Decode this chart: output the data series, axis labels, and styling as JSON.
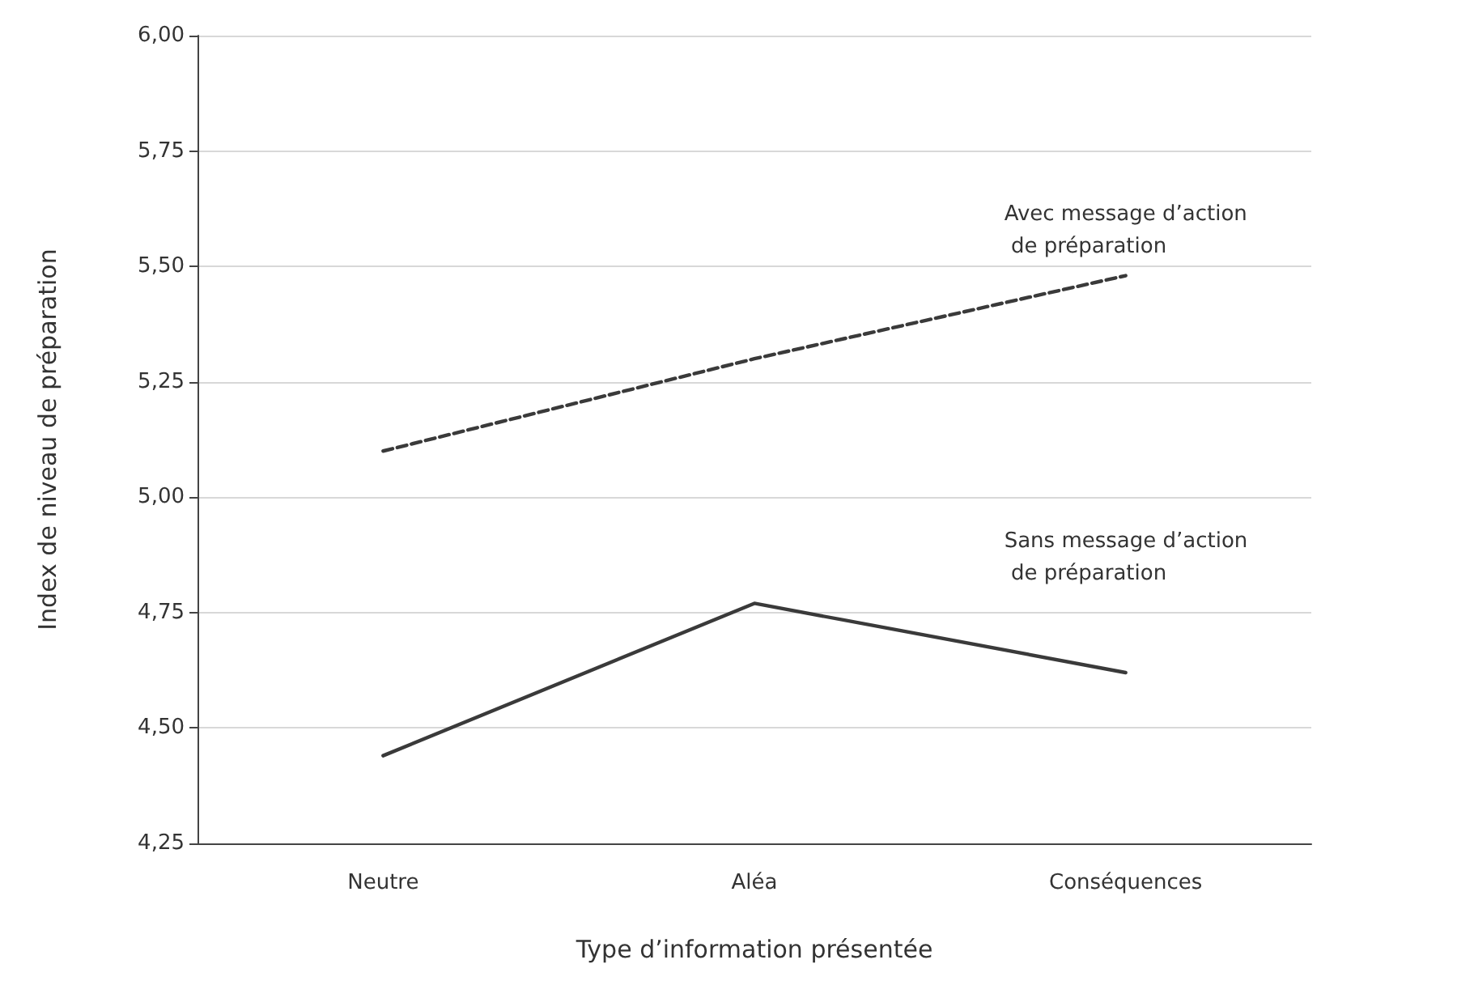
{
  "chart_data": {
    "type": "line",
    "xlabel": "Type d’information présentée",
    "ylabel": "Index de niveau de préparation",
    "categories": [
      "Neutre",
      "Aléa",
      "Conséquences"
    ],
    "series": [
      {
        "name": "Avec message d’action de préparation",
        "color": "#3a3a3a",
        "line_style": "dashed",
        "values": [
          5.1,
          5.3,
          5.48
        ]
      },
      {
        "name": "Sans message d’action de préparation",
        "color": "#3a3a3a",
        "line_style": "solid",
        "values": [
          4.44,
          4.77,
          4.62
        ]
      }
    ],
    "ylim": [
      4.25,
      6.0
    ],
    "yticks": [
      {
        "value": 4.25,
        "label": "4,25"
      },
      {
        "value": 4.5,
        "label": "4,50"
      },
      {
        "value": 4.75,
        "label": "4,75"
      },
      {
        "value": 5.0,
        "label": "5,00"
      },
      {
        "value": 5.25,
        "label": "5,25"
      },
      {
        "value": 5.5,
        "label": "5,50"
      },
      {
        "value": 5.75,
        "label": "5,75"
      },
      {
        "value": 6.0,
        "label": "6,00"
      }
    ],
    "grid": "y",
    "legend": false,
    "marker": "none"
  }
}
